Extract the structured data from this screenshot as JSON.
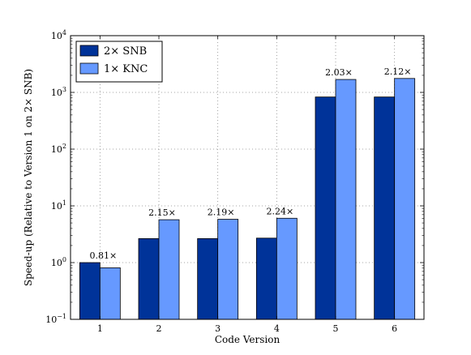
{
  "chart_data": {
    "type": "bar",
    "title": "",
    "xlabel": "Code Version",
    "ylabel": "Speed-up (Relative to Version 1 on 2× SNB)",
    "yscale": "log",
    "ylim": [
      0.1,
      10000
    ],
    "yticks": [
      {
        "value": 0.1,
        "base": "10",
        "exp": "−1"
      },
      {
        "value": 1,
        "base": "10",
        "exp": "0"
      },
      {
        "value": 10,
        "base": "10",
        "exp": "1"
      },
      {
        "value": 100,
        "base": "10",
        "exp": "2"
      },
      {
        "value": 1000,
        "base": "10",
        "exp": "3"
      },
      {
        "value": 10000,
        "base": "10",
        "exp": "4"
      }
    ],
    "categories": [
      "1",
      "2",
      "3",
      "4",
      "5",
      "6"
    ],
    "series": [
      {
        "name": "2× SNB",
        "color": "#003399",
        "values": [
          1.0,
          2.65,
          2.65,
          2.7,
          830,
          830
        ]
      },
      {
        "name": "1× KNC",
        "color": "#6699ff",
        "values": [
          0.81,
          5.7,
          5.8,
          6.05,
          1690,
          1760
        ]
      }
    ],
    "annotations": [
      "0.81×",
      "2.15×",
      "2.19×",
      "2.24×",
      "2.03×",
      "2.12×"
    ],
    "grid": true,
    "legend_position": "top-left"
  }
}
